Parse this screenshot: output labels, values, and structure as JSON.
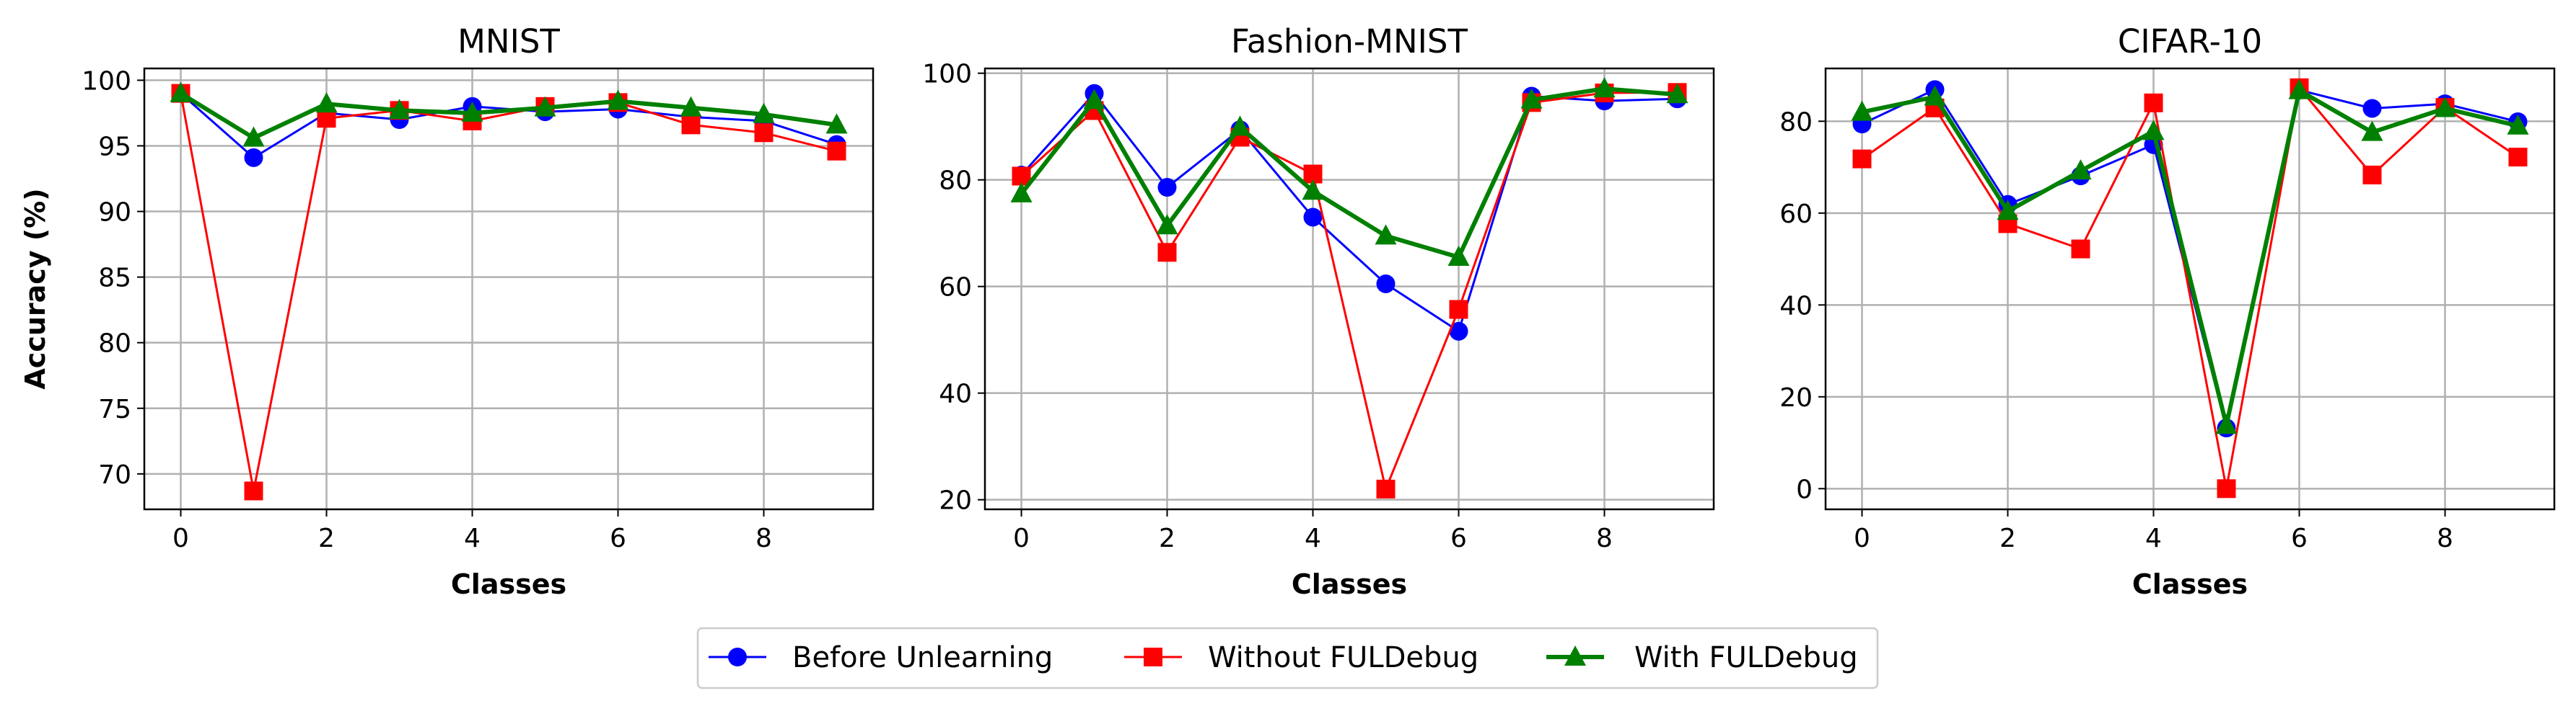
{
  "chart_data": [
    {
      "type": "line",
      "title": "MNIST",
      "xlabel": "Classes",
      "ylabel": "Accuracy (%)",
      "xlim": [
        -0.5,
        9.5
      ],
      "ylim": [
        67.3,
        100.9
      ],
      "xticks": [
        0,
        2,
        4,
        6,
        8
      ],
      "yticks": [
        70,
        75,
        80,
        85,
        90,
        95,
        100
      ],
      "grid": true,
      "x": [
        0,
        1,
        2,
        3,
        4,
        5,
        6,
        7,
        8,
        9
      ],
      "series": [
        {
          "name": "Before Unlearning",
          "values": [
            99.0,
            94.1,
            97.5,
            97.0,
            98.0,
            97.6,
            97.8,
            97.2,
            96.9,
            95.1
          ]
        },
        {
          "name": "Without FULDebug",
          "values": [
            99.0,
            68.7,
            97.1,
            97.7,
            96.9,
            98.0,
            98.3,
            96.6,
            96.0,
            94.6
          ]
        },
        {
          "name": "With FULDebug",
          "values": [
            99.0,
            95.6,
            98.2,
            97.7,
            97.5,
            97.9,
            98.4,
            97.9,
            97.4,
            96.6
          ]
        }
      ]
    },
    {
      "type": "line",
      "title": "Fashion-MNIST",
      "xlabel": "Classes",
      "ylabel": "",
      "xlim": [
        -0.5,
        9.5
      ],
      "ylim": [
        18.2,
        100.9
      ],
      "xticks": [
        0,
        2,
        4,
        6,
        8
      ],
      "yticks": [
        20,
        40,
        60,
        80,
        100
      ],
      "grid": true,
      "x": [
        0,
        1,
        2,
        3,
        4,
        5,
        6,
        7,
        8,
        9
      ],
      "series": [
        {
          "name": "Before Unlearning",
          "values": [
            80.9,
            96.2,
            78.6,
            89.4,
            73.0,
            60.5,
            51.6,
            95.7,
            94.8,
            95.2
          ]
        },
        {
          "name": "Without FULDebug",
          "values": [
            80.7,
            93.0,
            66.4,
            88.0,
            81.1,
            22.0,
            55.7,
            94.5,
            96.3,
            96.4
          ]
        },
        {
          "name": "With FULDebug",
          "values": [
            77.4,
            94.9,
            71.4,
            89.9,
            77.9,
            69.5,
            65.5,
            95.0,
            97.1,
            96.0
          ]
        }
      ]
    },
    {
      "type": "line",
      "title": "CIFAR-10",
      "xlabel": "Classes",
      "ylabel": "",
      "xlim": [
        -0.5,
        9.5
      ],
      "ylim": [
        -4.5,
        91.5
      ],
      "xticks": [
        0,
        2,
        4,
        6,
        8
      ],
      "yticks": [
        0,
        20,
        40,
        60,
        80
      ],
      "grid": true,
      "x": [
        0,
        1,
        2,
        3,
        4,
        5,
        6,
        7,
        8,
        9
      ],
      "series": [
        {
          "name": "Before Unlearning",
          "values": [
            79.4,
            86.9,
            61.9,
            68.1,
            74.9,
            13.2,
            86.8,
            82.8,
            83.8,
            79.9
          ]
        },
        {
          "name": "Without FULDebug",
          "values": [
            71.8,
            82.9,
            57.7,
            52.2,
            84.0,
            0.0,
            87.3,
            68.3,
            83.0,
            72.2
          ]
        },
        {
          "name": "With FULDebug",
          "values": [
            82.0,
            85.3,
            60.4,
            69.2,
            77.8,
            13.8,
            86.7,
            77.6,
            82.8,
            79.0
          ]
        }
      ]
    }
  ],
  "legend": {
    "placement": "bottom-center",
    "entries": [
      {
        "label": "Before Unlearning",
        "color": "#0000ff",
        "marker": "circle"
      },
      {
        "label": "Without FULDebug",
        "color": "#ff0000",
        "marker": "square"
      },
      {
        "label": "With FULDebug",
        "color": "#008000",
        "marker": "triangle"
      }
    ]
  },
  "colors": {
    "series": [
      "#0000ff",
      "#ff0000",
      "#008000"
    ],
    "grid": "#b0b0b0",
    "axes": "#000000"
  }
}
